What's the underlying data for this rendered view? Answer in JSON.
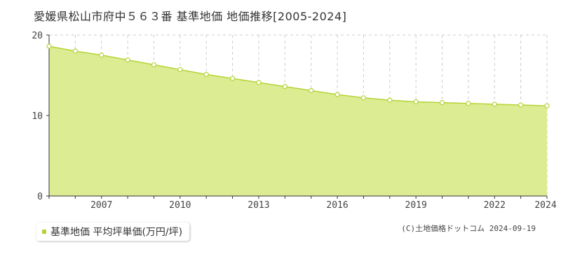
{
  "title": "愛媛県松山市府中５６３番 基準地価 地価推移[2005-2024]",
  "legend": {
    "label": "基準地価 平均坪単価(万円/坪)"
  },
  "credit": "(C)土地価格ドットコム 2024-09-19",
  "colors": {
    "fill": "#dcec93",
    "line": "#b5d336",
    "point_fill": "#ffffff",
    "grid": "#cccccc"
  },
  "chart_data": {
    "type": "area",
    "title": "愛媛県松山市府中５６３番 基準地価 地価推移[2005-2024]",
    "xlabel": "",
    "ylabel": "",
    "x": [
      2005,
      2006,
      2007,
      2008,
      2009,
      2010,
      2011,
      2012,
      2013,
      2014,
      2015,
      2016,
      2017,
      2018,
      2019,
      2020,
      2021,
      2022,
      2023,
      2024
    ],
    "series": [
      {
        "name": "基準地価 平均坪単価(万円/坪)",
        "values": [
          18.6,
          18.0,
          17.5,
          16.9,
          16.3,
          15.7,
          15.1,
          14.6,
          14.1,
          13.6,
          13.1,
          12.6,
          12.2,
          11.9,
          11.7,
          11.6,
          11.5,
          11.4,
          11.3,
          11.2
        ]
      }
    ],
    "xticks": [
      "2007",
      "2010",
      "2013",
      "2016",
      "2019",
      "2022",
      "2024"
    ],
    "yticks": [
      "0",
      "10",
      "20"
    ],
    "xlim": [
      2005,
      2024
    ],
    "ylim": [
      0,
      20
    ],
    "grid": true,
    "legend_position": "bottom-left"
  }
}
